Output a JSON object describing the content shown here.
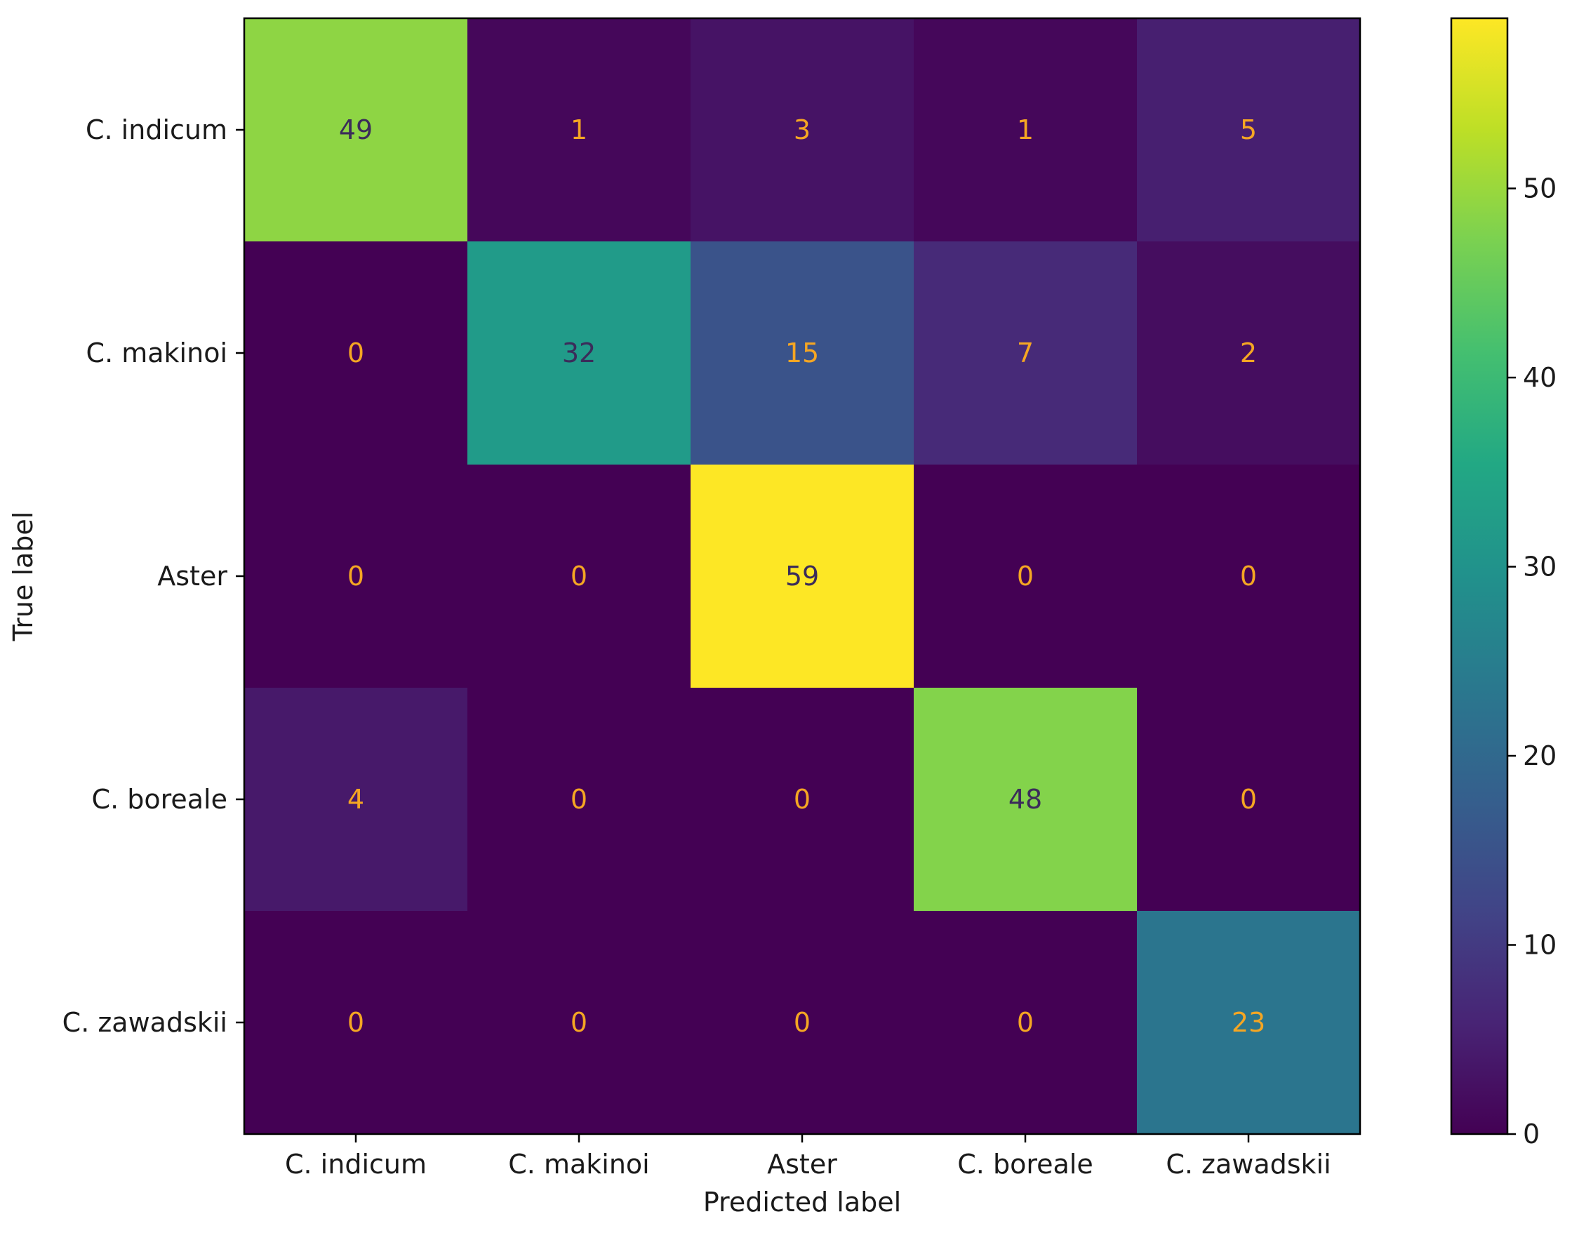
{
  "chart_data": {
    "type": "heatmap",
    "title": "",
    "xlabel": "Predicted label",
    "ylabel": "True label",
    "x_categories": [
      "C. indicum",
      "C. makinoi",
      "Aster",
      "C. boreale",
      "C. zawadskii"
    ],
    "y_categories": [
      "C. indicum",
      "C. makinoi",
      "Aster",
      "C. boreale",
      "C. zawadskii"
    ],
    "matrix": [
      [
        49,
        1,
        3,
        1,
        5
      ],
      [
        0,
        32,
        15,
        7,
        2
      ],
      [
        0,
        0,
        59,
        0,
        0
      ],
      [
        4,
        0,
        0,
        48,
        0
      ],
      [
        0,
        0,
        0,
        0,
        23
      ]
    ],
    "colormap": "viridis",
    "vmin": 0,
    "vmax": 59,
    "colorbar_ticks": [
      0,
      10,
      20,
      30,
      40,
      50
    ],
    "grid": false,
    "colorbar_placement": "right",
    "annotation_colors": {
      "on_dark": "#f5a623",
      "on_light": "#3b2c5a"
    }
  }
}
